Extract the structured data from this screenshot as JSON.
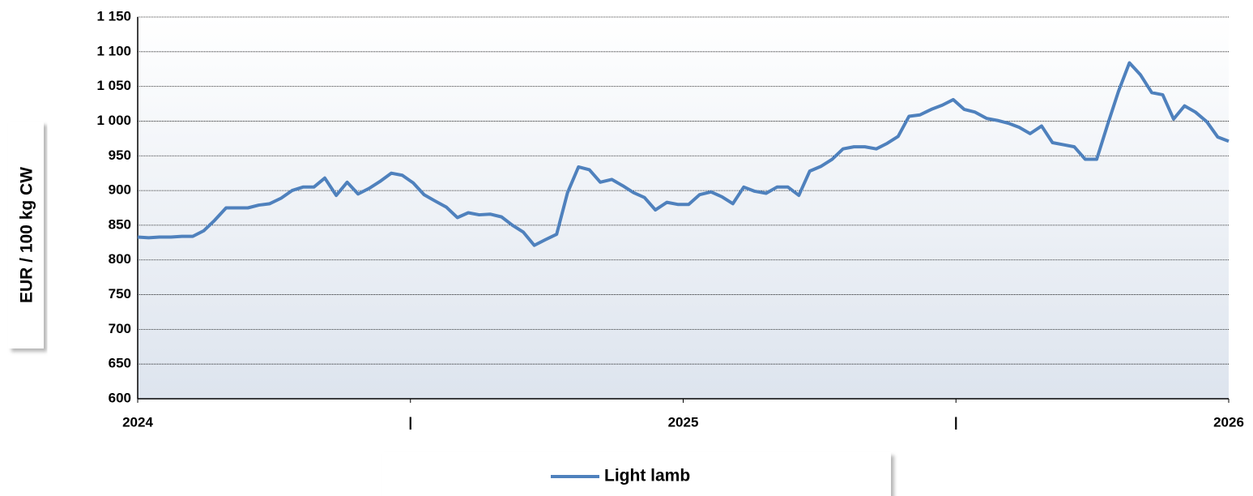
{
  "chart_data": {
    "type": "line",
    "y_label": "EUR / 100 kg CW",
    "x": [
      2024,
      2024.02,
      2024.04,
      2024.061,
      2024.081,
      2024.101,
      2024.121,
      2024.141,
      2024.162,
      2024.182,
      2024.202,
      2024.222,
      2024.242,
      2024.263,
      2024.283,
      2024.303,
      2024.323,
      2024.343,
      2024.364,
      2024.384,
      2024.404,
      2024.424,
      2024.444,
      2024.465,
      2024.485,
      2024.505,
      2024.525,
      2024.545,
      2024.566,
      2024.586,
      2024.606,
      2024.626,
      2024.646,
      2024.667,
      2024.687,
      2024.707,
      2024.727,
      2024.747,
      2024.768,
      2024.788,
      2024.808,
      2024.828,
      2024.848,
      2024.869,
      2024.889,
      2024.909,
      2024.929,
      2024.949,
      2024.97,
      2024.99,
      2025.01,
      2025.03,
      2025.051,
      2025.071,
      2025.091,
      2025.111,
      2025.131,
      2025.152,
      2025.172,
      2025.192,
      2025.212,
      2025.232,
      2025.253,
      2025.273,
      2025.293,
      2025.313,
      2025.333,
      2025.354,
      2025.374,
      2025.394,
      2025.414,
      2025.434,
      2025.455,
      2025.475,
      2025.495,
      2025.515,
      2025.535,
      2025.556,
      2025.576,
      2025.596,
      2025.616,
      2025.636,
      2025.657,
      2025.677,
      2025.697,
      2025.717,
      2025.737,
      2025.758,
      2025.778,
      2025.798,
      2025.818,
      2025.838,
      2025.859,
      2025.879,
      2025.899,
      2025.919,
      2025.939,
      2025.96,
      2025.98,
      2026
    ],
    "series": [
      {
        "name": "Light lamb",
        "color": "#4f81bd",
        "values": [
          833,
          832,
          833,
          833,
          834,
          834,
          842,
          857,
          875,
          875,
          875,
          879,
          881,
          889,
          900,
          905,
          905,
          918,
          893,
          912,
          895,
          903,
          913,
          925,
          922,
          911,
          894,
          885,
          876,
          861,
          868,
          865,
          866,
          862,
          850,
          840,
          821,
          829,
          837,
          897,
          934,
          930,
          912,
          916,
          907,
          897,
          890,
          872,
          883,
          880,
          880,
          894,
          898,
          891,
          881,
          905,
          899,
          896,
          905,
          905,
          893,
          928,
          935,
          945,
          960,
          963,
          963,
          960,
          968,
          978,
          1007,
          1009,
          1017,
          1023,
          1031,
          1017,
          1013,
          1004,
          1001,
          997,
          991,
          982,
          993,
          969,
          966,
          963,
          945,
          945,
          995,
          1043,
          1084,
          1067,
          1041,
          1038,
          1003,
          1022,
          1013,
          999,
          977,
          971
        ]
      }
    ],
    "xlim": [
      2024,
      2026
    ],
    "xticks": [
      2024,
      {
        "value": 2024.5,
        "label": "|"
      },
      2025,
      {
        "value": 2025.5,
        "label": "|"
      },
      2026
    ],
    "ylim": [
      600,
      1150
    ],
    "yticks": [
      600,
      650,
      700,
      750,
      800,
      850,
      900,
      950,
      {
        "value": 1000,
        "label": "1 000"
      },
      {
        "value": 1050,
        "label": "1 050"
      },
      {
        "value": 1100,
        "label": "1 100"
      },
      {
        "value": 1150,
        "label": "1 150"
      }
    ],
    "grid": true,
    "legend": "bottom"
  }
}
